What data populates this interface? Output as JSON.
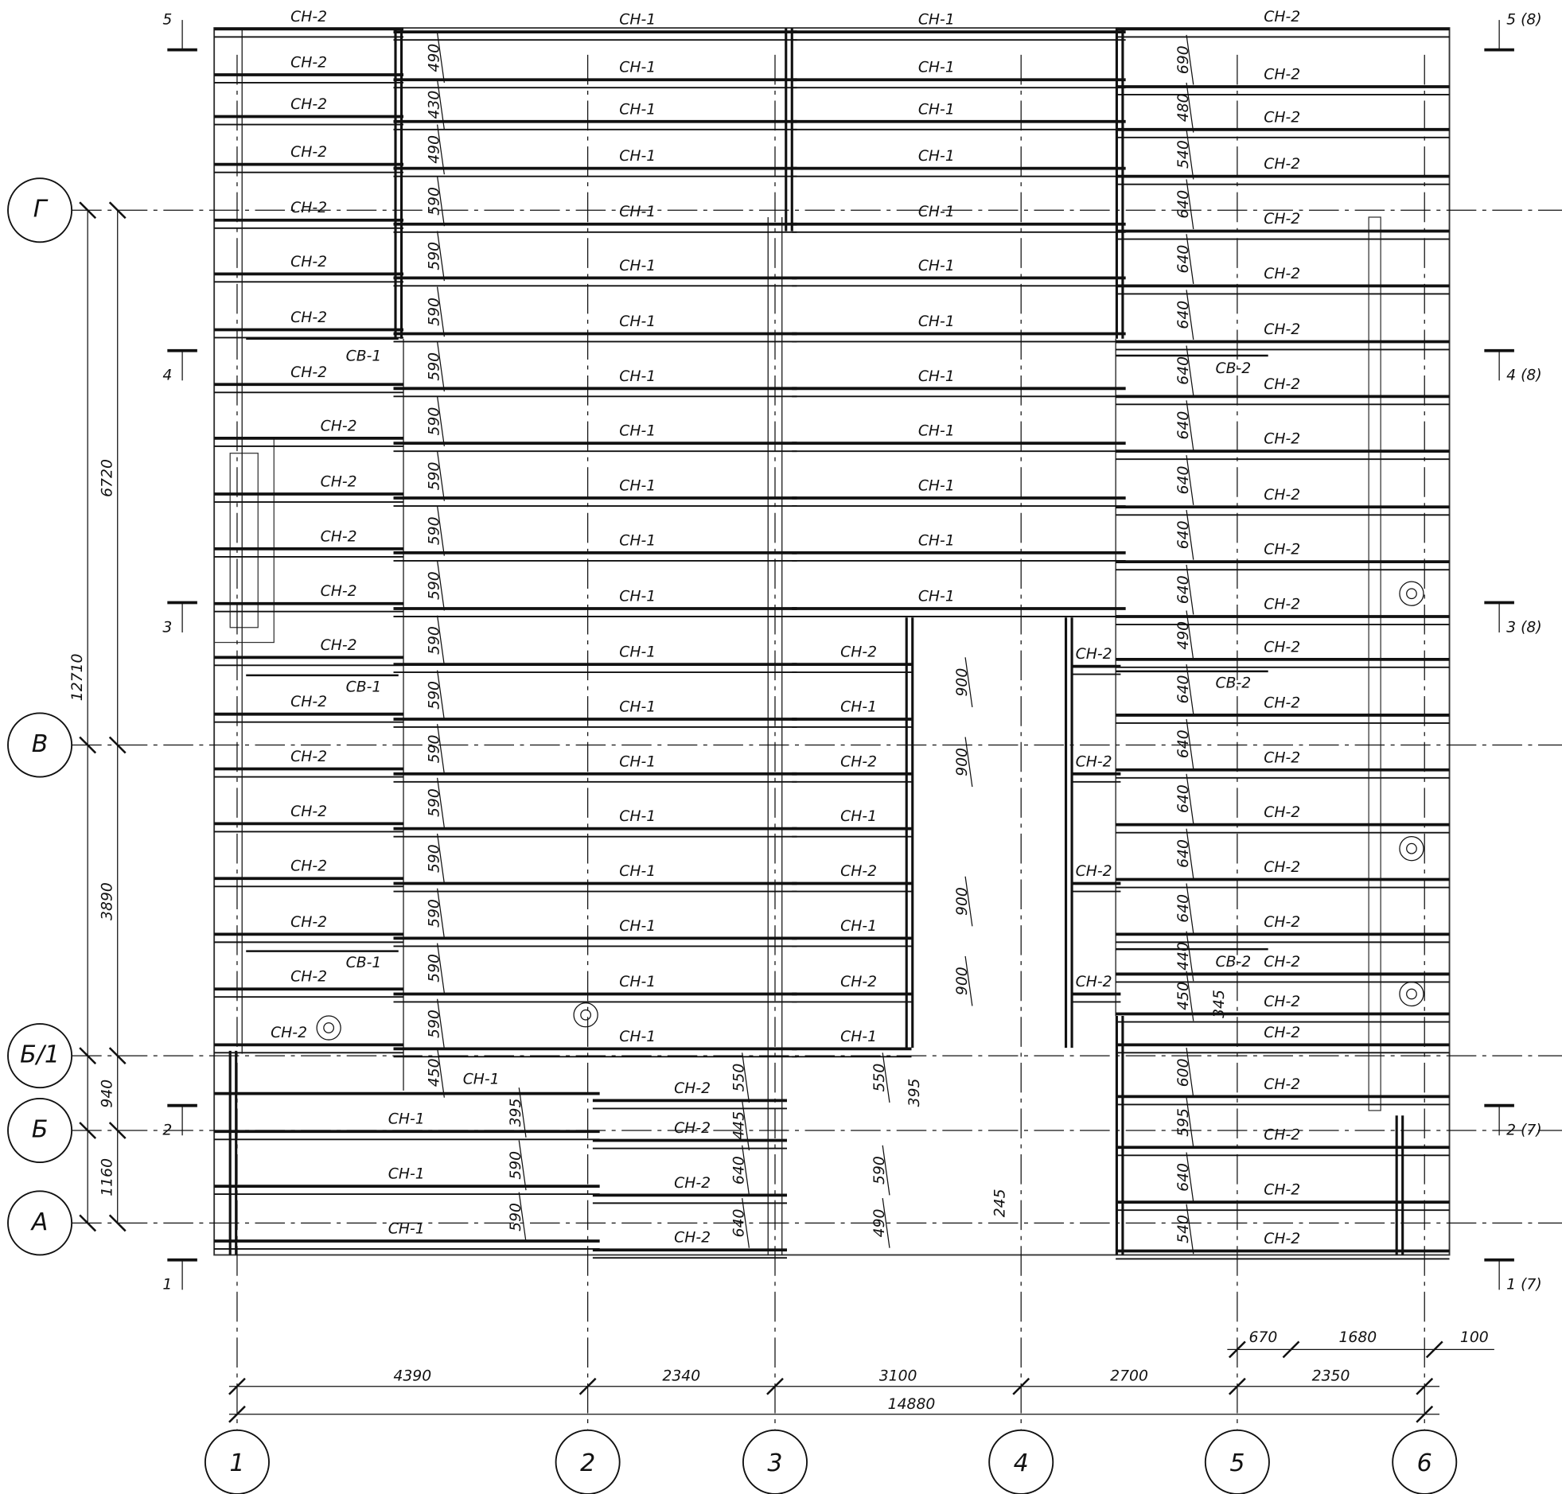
{
  "row_axes": [
    "Г",
    "В",
    "Б/1",
    "Б",
    "А"
  ],
  "col_axes": [
    "1",
    "2",
    "3",
    "4",
    "5",
    "6"
  ],
  "sections": {
    "left": [
      "5",
      "4",
      "3",
      "2",
      "1"
    ],
    "right": [
      "5 (8)",
      "4 (8)",
      "3 (8)",
      "2 (7)",
      "1 (7)"
    ]
  },
  "dims": {
    "bottom": [
      "4390",
      "2340",
      "3100",
      "2700",
      "2350"
    ],
    "bottom_total": "14880",
    "bottom_extra": [
      "670",
      "1680",
      "100"
    ],
    "left": [
      "6720",
      "3890",
      "940",
      "1160"
    ],
    "left_total": "12710"
  },
  "beams": {
    "left": [
      "СН-2",
      "СН-2",
      "СН-2",
      "СН-2",
      "СН-2",
      "СН-2",
      "СН-2",
      "СН-2",
      "СН-2",
      "СН-2",
      "СН-2",
      "СН-2",
      "СН-2",
      "СН-2",
      "СН-2",
      "СН-2",
      "СН-2",
      "СН-2",
      "СН-2",
      "СН-2"
    ],
    "left_braces": [
      "СВ-1",
      "СВ-1",
      "СВ-1"
    ],
    "mid1": [
      "СН-1",
      "СН-1",
      "СН-1",
      "СН-1",
      "СН-1",
      "СН-1",
      "СН-1",
      "СН-1",
      "СН-1",
      "СН-1",
      "СН-1",
      "СН-1",
      "СН-1",
      "СН-1",
      "СН-1",
      "СН-1",
      "СН-1",
      "СН-1",
      "СН-1",
      "СН-1"
    ],
    "mid1_low": "СН-1",
    "mid1_bottom": [
      "СН-1",
      "СН-1",
      "СН-1"
    ],
    "mid2": [
      "СН-1",
      "СН-1",
      "СН-1",
      "СН-1",
      "СН-1",
      "СН-1",
      "СН-1",
      "СН-1",
      "СН-1",
      "СН-1",
      "СН-1",
      "СН-1"
    ],
    "mid2_low": [
      "СН-2",
      "СН-1",
      "СН-2",
      "СН-1",
      "СН-2",
      "СН-1",
      "СН-2",
      "СН-1"
    ],
    "mid_b": [
      "СН-2",
      "СН-2",
      "СН-2",
      "СН-2"
    ],
    "mid3": [
      "СН-2",
      "СН-2",
      "СН-2",
      "СН-2"
    ],
    "right": [
      "СН-2",
      "СН-2",
      "СН-2",
      "СН-2",
      "СН-2",
      "СН-2",
      "СН-2",
      "СН-2",
      "СН-2",
      "СН-2",
      "СН-2",
      "СН-2",
      "СН-2",
      "СН-2",
      "СН-2",
      "СН-2",
      "СН-2",
      "СН-2",
      "СН-2",
      "СН-2",
      "СН-2",
      "СН-2",
      "СН-2",
      "СН-2",
      "СН-2"
    ],
    "right_braces": [
      "СВ-2",
      "СВ-2",
      "СВ-2"
    ]
  },
  "spacing": {
    "a": [
      "490",
      "430",
      "490",
      "590",
      "590",
      "590",
      "590",
      "590",
      "590",
      "590",
      "590",
      "590",
      "590",
      "590",
      "590",
      "590",
      "590",
      "590",
      "590",
      "450"
    ],
    "b": [
      "690",
      "480",
      "540",
      "640",
      "640",
      "640",
      "640",
      "640",
      "640",
      "640",
      "640",
      "490",
      "640",
      "640",
      "640",
      "640",
      "640",
      "440",
      "450",
      "600",
      "595",
      "640",
      "540"
    ],
    "c": [
      "900",
      "900",
      "900",
      "900"
    ],
    "d": [
      "395",
      "590",
      "590"
    ],
    "e": [
      "550",
      "445",
      "640",
      "640"
    ],
    "f": [
      "550",
      "590",
      "490"
    ],
    "g": [
      "395",
      "345",
      "245"
    ]
  }
}
